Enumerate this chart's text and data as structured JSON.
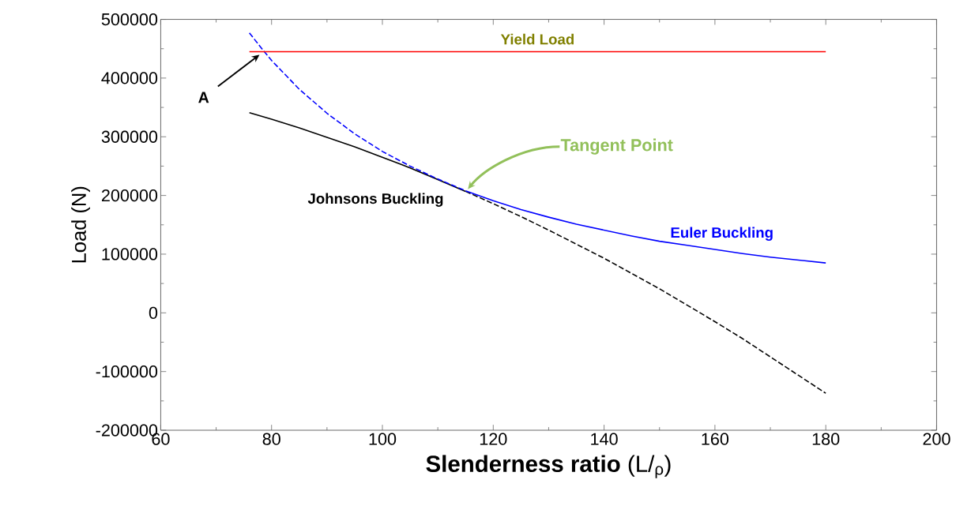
{
  "chart_data": {
    "type": "line",
    "xlabel": "**Slenderness ratio**  (L/$_{ρ}$)",
    "ylabel": "Load (N)",
    "xlim": [
      60,
      200
    ],
    "xticks": [
      60,
      80,
      100,
      120,
      140,
      160,
      180,
      200
    ],
    "ylim": [
      -200000,
      500000
    ],
    "yticks": [
      -200000,
      -100000,
      0,
      100000,
      200000,
      300000,
      400000,
      500000
    ],
    "marker": "none",
    "grid": false,
    "series": [
      {
        "name": "Johnsons Buckling",
        "color": "#000000",
        "line_style": "solid",
        "x": [
          76,
          80,
          85,
          90,
          95,
          100,
          105,
          110,
          115
        ],
        "values": [
          341000,
          330000,
          315000,
          299000,
          283000,
          265000,
          247000,
          227000,
          207000
        ]
      },
      {
        "color": "#000000",
        "line_style": "dashed",
        "x": [
          115,
          120,
          125,
          130,
          135,
          140,
          145,
          150,
          155,
          160,
          165,
          170,
          175,
          180
        ],
        "values": [
          207000,
          186000,
          164000,
          141000,
          117000,
          93000,
          67000,
          41000,
          13000,
          -15000,
          -44000,
          -75000,
          -106000,
          -137000
        ]
      },
      {
        "color": "#0000ff",
        "line_style": "dashed",
        "x": [
          76,
          78,
          80,
          85,
          90,
          95,
          100,
          105,
          110,
          115
        ],
        "values": [
          477000,
          453000,
          430000,
          381000,
          340000,
          305000,
          275000,
          250000,
          228000,
          208000
        ]
      },
      {
        "name": "Euler Buckling",
        "color": "#0000ff",
        "line_style": "solid",
        "x": [
          115,
          120,
          125,
          130,
          135,
          140,
          145,
          150,
          155,
          160,
          165,
          170,
          175,
          180
        ],
        "values": [
          208000,
          191000,
          176000,
          163000,
          151000,
          141000,
          131000,
          122000,
          115000,
          108000,
          101000,
          95000,
          90000,
          85000
        ]
      },
      {
        "name": "Yield Load",
        "color": "#ff0000",
        "line_style": "solid",
        "x": [
          76,
          180
        ],
        "values": [
          445000,
          445000
        ]
      }
    ],
    "annotations": [
      "A",
      "Tangent Point"
    ]
  }
}
